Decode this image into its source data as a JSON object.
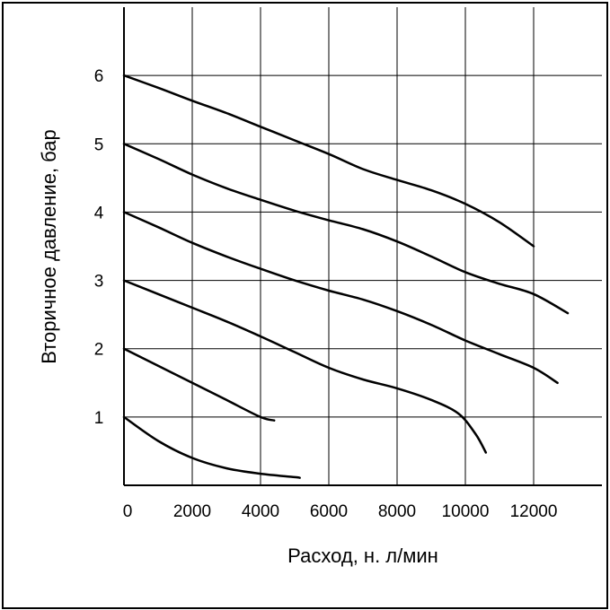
{
  "chart_data": {
    "type": "line",
    "title": "",
    "xlabel": "Расход, н. л/мин",
    "ylabel": "Вторичное давление, бар",
    "xlim": [
      0,
      14000
    ],
    "ylim": [
      0,
      7
    ],
    "grid": true,
    "legend": "none",
    "x_ticks": [
      0,
      2000,
      4000,
      6000,
      8000,
      10000,
      12000
    ],
    "x_tick_labels": [
      "0",
      "2000",
      "4000",
      "6000",
      "8000",
      "10000",
      "12000"
    ],
    "y_ticks": [
      1,
      2,
      3,
      4,
      5,
      6
    ],
    "y_tick_labels": [
      "1",
      "2",
      "3",
      "4",
      "5",
      "6"
    ],
    "line_color": "#000000",
    "series": [
      {
        "points": [
          [
            0,
            1.0
          ],
          [
            1000,
            0.65
          ],
          [
            2000,
            0.4
          ],
          [
            3000,
            0.25
          ],
          [
            4000,
            0.17
          ],
          [
            5000,
            0.12
          ],
          [
            5150,
            0.11
          ]
        ]
      },
      {
        "points": [
          [
            0,
            2.0
          ],
          [
            1000,
            1.75
          ],
          [
            2000,
            1.5
          ],
          [
            3000,
            1.25
          ],
          [
            4000,
            1.0
          ],
          [
            4400,
            0.95
          ]
        ]
      },
      {
        "points": [
          [
            0,
            3.0
          ],
          [
            1000,
            2.8
          ],
          [
            2000,
            2.6
          ],
          [
            3000,
            2.4
          ],
          [
            4000,
            2.18
          ],
          [
            5000,
            1.95
          ],
          [
            6000,
            1.72
          ],
          [
            7000,
            1.55
          ],
          [
            8000,
            1.42
          ],
          [
            9000,
            1.25
          ],
          [
            9800,
            1.05
          ],
          [
            10300,
            0.75
          ],
          [
            10600,
            0.48
          ]
        ]
      },
      {
        "points": [
          [
            0,
            4.0
          ],
          [
            1000,
            3.78
          ],
          [
            2000,
            3.55
          ],
          [
            3000,
            3.35
          ],
          [
            4000,
            3.17
          ],
          [
            5000,
            3.0
          ],
          [
            6000,
            2.85
          ],
          [
            7000,
            2.72
          ],
          [
            8000,
            2.55
          ],
          [
            9000,
            2.35
          ],
          [
            10000,
            2.12
          ],
          [
            11000,
            1.92
          ],
          [
            12000,
            1.72
          ],
          [
            12700,
            1.5
          ]
        ]
      },
      {
        "points": [
          [
            0,
            5.0
          ],
          [
            1000,
            4.78
          ],
          [
            2000,
            4.55
          ],
          [
            3000,
            4.35
          ],
          [
            4000,
            4.18
          ],
          [
            5000,
            4.02
          ],
          [
            6000,
            3.88
          ],
          [
            7000,
            3.75
          ],
          [
            8000,
            3.57
          ],
          [
            9000,
            3.35
          ],
          [
            10000,
            3.12
          ],
          [
            11000,
            2.95
          ],
          [
            12000,
            2.8
          ],
          [
            13000,
            2.52
          ]
        ]
      },
      {
        "points": [
          [
            0,
            6.0
          ],
          [
            1000,
            5.82
          ],
          [
            2000,
            5.63
          ],
          [
            3000,
            5.45
          ],
          [
            4000,
            5.25
          ],
          [
            5000,
            5.05
          ],
          [
            6000,
            4.85
          ],
          [
            7000,
            4.63
          ],
          [
            8000,
            4.47
          ],
          [
            9000,
            4.32
          ],
          [
            10000,
            4.12
          ],
          [
            11000,
            3.85
          ],
          [
            12000,
            3.5
          ]
        ]
      }
    ]
  }
}
